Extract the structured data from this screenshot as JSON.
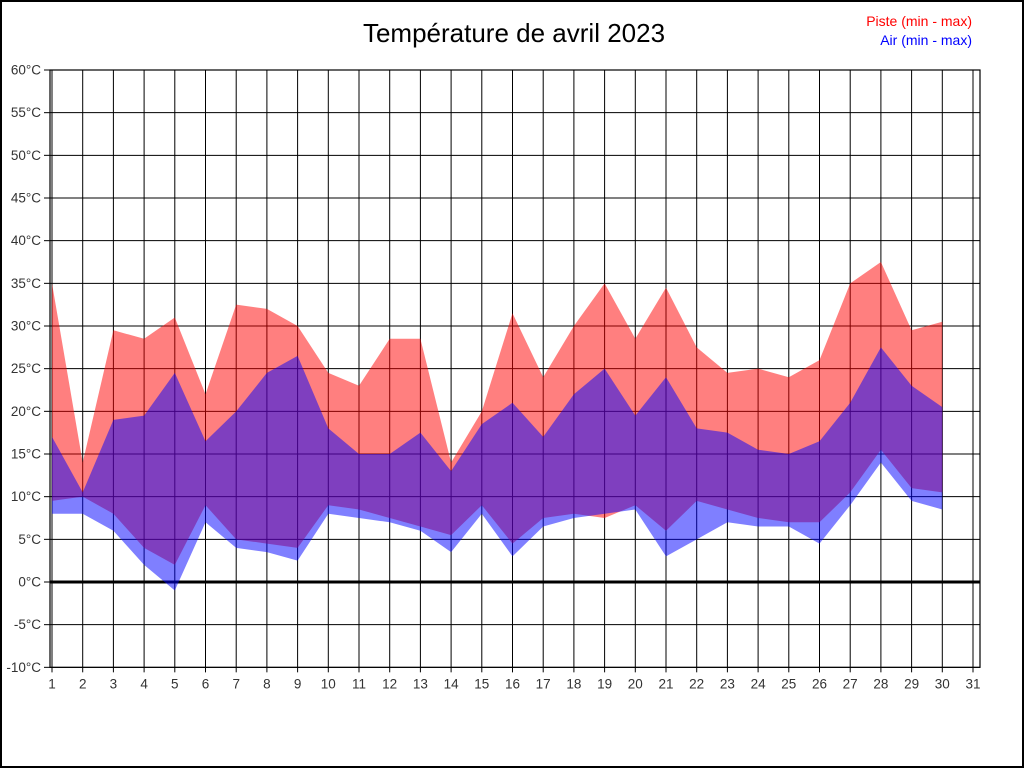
{
  "page": {
    "title": "Température de avril 2023",
    "legend": {
      "piste_label": "Piste (min - max)",
      "piste_color": "#ff0000",
      "air_label": "Air (min - max)",
      "air_color": "#0000ff"
    }
  },
  "chart_data": {
    "type": "area",
    "subtype": "min-max-range-bands",
    "title": "Température de avril 2023",
    "xlabel": "",
    "ylabel": "",
    "unit": "°C",
    "xlim": [
      1,
      31
    ],
    "ylim": [
      -10,
      60
    ],
    "x_ticks": [
      1,
      2,
      3,
      4,
      5,
      6,
      7,
      8,
      9,
      10,
      11,
      12,
      13,
      14,
      15,
      16,
      17,
      18,
      19,
      20,
      21,
      22,
      23,
      24,
      25,
      26,
      27,
      28,
      29,
      30,
      31
    ],
    "y_ticks": [
      -10,
      -5,
      0,
      5,
      10,
      15,
      20,
      25,
      30,
      35,
      40,
      45,
      50,
      55,
      60
    ],
    "y_tick_suffix": "°C",
    "grid": true,
    "zero_line_bold": true,
    "legend_position": "top-right",
    "days": [
      1,
      2,
      3,
      4,
      5,
      6,
      7,
      8,
      9,
      10,
      11,
      12,
      13,
      14,
      15,
      16,
      17,
      18,
      19,
      20,
      21,
      22,
      23,
      24,
      25,
      26,
      27,
      28,
      29,
      30
    ],
    "series": [
      {
        "name": "Piste (min - max)",
        "color": "#ff0000",
        "fill_opacity": 0.5,
        "max": [
          35,
          14,
          29.5,
          28.5,
          31,
          22,
          32.5,
          32,
          30,
          24.5,
          23,
          28.5,
          28.5,
          14,
          20,
          31.5,
          24,
          30,
          35,
          28.5,
          34.5,
          27.5,
          24.5,
          25,
          24,
          26,
          35,
          37.5,
          29.5,
          30.5
        ],
        "min": [
          9.5,
          10,
          8,
          4,
          2,
          9,
          5,
          4.5,
          4,
          9,
          8.5,
          7.5,
          6.5,
          5.5,
          9,
          4.5,
          7.5,
          8,
          7.5,
          9,
          6,
          9.5,
          8.5,
          7.5,
          7,
          7,
          10.5,
          15.5,
          11,
          10.5
        ]
      },
      {
        "name": "Air (min - max)",
        "color": "#0000ff",
        "fill_opacity": 0.5,
        "max": [
          17,
          10.5,
          19,
          19.5,
          24.5,
          16.5,
          20,
          24.5,
          26.5,
          18,
          15,
          15,
          17.5,
          13,
          18.5,
          21,
          17,
          22,
          25,
          19.5,
          24,
          18,
          17.5,
          15.5,
          15,
          16.5,
          21,
          27.5,
          23,
          20.5
        ],
        "min": [
          8,
          8,
          6,
          2,
          -1,
          7,
          4,
          3.5,
          2.5,
          8,
          7.5,
          7,
          6,
          3.5,
          8,
          3,
          6.5,
          7.5,
          8,
          8.5,
          3,
          5,
          7,
          6.5,
          6.5,
          4.5,
          9,
          14,
          9.5,
          8.5
        ]
      }
    ],
    "overlap_rendered_color": "#8040bf",
    "grid_color": "#000000",
    "tick_label_color": "#333333"
  }
}
